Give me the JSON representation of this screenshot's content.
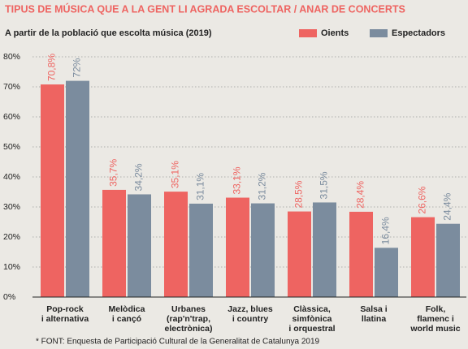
{
  "chart_data": {
    "type": "bar",
    "title": "TIPUS DE MÚSICA QUE A LA GENT LI AGRADA ESCOLTAR / ANAR DE CONCERTS",
    "subtitle": "A partir de la població que escolta música (2019)",
    "footnote": "* FONT: Enquesta de Participació Cultural de la Generalitat de Catalunya 2019",
    "categories": [
      "Pop-rock\ni alternativa",
      "Melòdica\ni cançó",
      "Urbanes\n(rap'n'trap,\nelectrònica)",
      "Jazz, blues\ni country",
      "Clàssica,\nsimfònica\ni orquestral",
      "Salsa i\nllatina",
      "Folk,\nflamenc i\nworld music"
    ],
    "series": [
      {
        "name": "Oients",
        "color": "#ee6461",
        "values": [
          70.8,
          35.7,
          35.1,
          33.1,
          28.5,
          28.4,
          26.6
        ],
        "value_labels": [
          "70,8%",
          "35,7%",
          "35,1%",
          "33,1%",
          "28,5%",
          "28,4%",
          "26,6%"
        ]
      },
      {
        "name": "Espectadors",
        "color": "#7b8c9e",
        "values": [
          72,
          34.2,
          31.1,
          31.2,
          31.5,
          16.4,
          24.4
        ],
        "value_labels": [
          "72%",
          "34,2%",
          "31,1%",
          "31,2%",
          "31,5%",
          "16,4%",
          "24,4%"
        ]
      }
    ],
    "ylim": [
      0,
      80
    ],
    "yticks": [
      {
        "value": 0,
        "label": "0%"
      },
      {
        "value": 10,
        "label": "10%"
      },
      {
        "value": 20,
        "label": "20%"
      },
      {
        "value": 30,
        "label": "30%"
      },
      {
        "value": 40,
        "label": "40%"
      },
      {
        "value": 50,
        "label": "50%"
      },
      {
        "value": 60,
        "label": "60%"
      },
      {
        "value": 70,
        "label": "70%"
      },
      {
        "value": 80,
        "label": "80%"
      }
    ],
    "grid": true,
    "legend": "top-right"
  }
}
